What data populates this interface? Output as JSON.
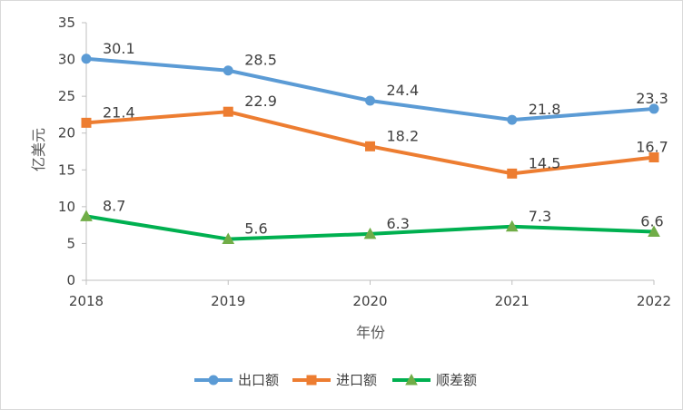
{
  "chart_data": {
    "type": "line",
    "title": "",
    "xlabel": "年份",
    "ylabel": "亿美元",
    "x": [
      "2018",
      "2019",
      "2020",
      "2021",
      "2022"
    ],
    "ylim": [
      0,
      35
    ],
    "yticks": [
      "0",
      "5",
      "10",
      "15",
      "20",
      "25",
      "30",
      "35"
    ],
    "grid": false,
    "legend_position": "bottom",
    "series": [
      {
        "name": "出口额",
        "values": [
          30.1,
          28.5,
          24.4,
          21.8,
          23.3
        ],
        "labels": [
          "30.1",
          "28.5",
          "24.4",
          "21.8",
          "23.3"
        ],
        "color": "#5b9bd5",
        "marker": "circle"
      },
      {
        "name": "进口额",
        "values": [
          21.4,
          22.9,
          18.2,
          14.5,
          16.7
        ],
        "labels": [
          "21.4",
          "22.9",
          "18.2",
          "14.5",
          "16.7"
        ],
        "color": "#ed7d31",
        "marker": "square"
      },
      {
        "name": "顺差额",
        "values": [
          8.7,
          5.6,
          6.3,
          7.3,
          6.6
        ],
        "labels": [
          "8.7",
          "5.6",
          "6.3",
          "7.3",
          "6.6"
        ],
        "color": "#00b050",
        "marker": "triangle",
        "marker_fill": "#70ad47"
      }
    ]
  }
}
